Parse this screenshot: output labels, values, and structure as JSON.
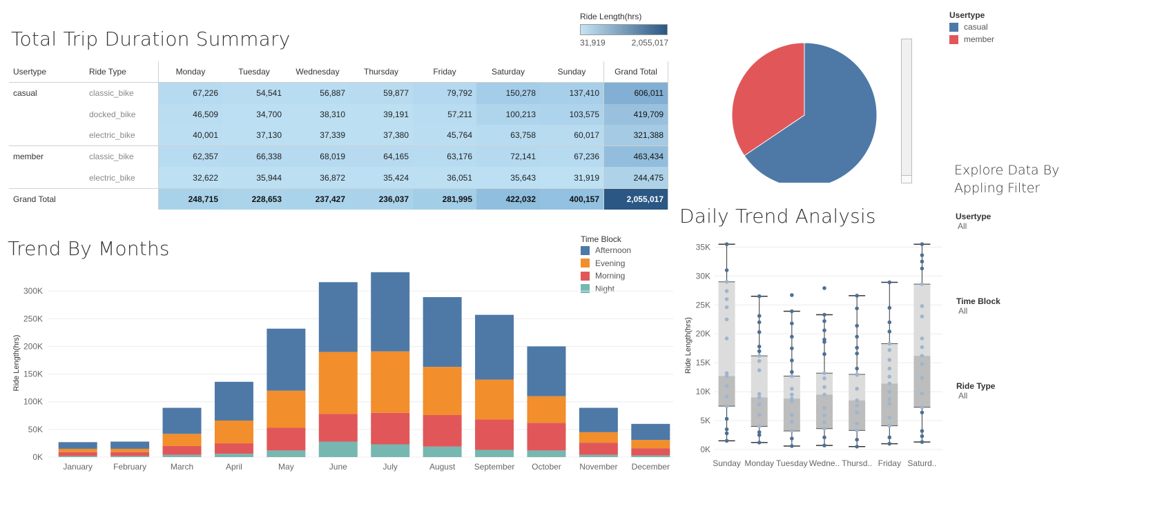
{
  "summary": {
    "title": "Total Trip Duration Summary",
    "color_legend": {
      "title": "Ride Length(hrs)",
      "min_label": "31,919",
      "max_label": "2,055,017",
      "min_color": "#c6e3f3",
      "max_color": "#2a5783"
    },
    "headers": [
      "Usertype",
      "Ride Type",
      "Monday",
      "Tuesday",
      "Wednesday",
      "Thursday",
      "Friday",
      "Saturday",
      "Sunday",
      "Grand Total"
    ],
    "rows": [
      {
        "usertype": "casual",
        "ride_type": "classic_bike",
        "values": [
          "67,226",
          "54,541",
          "56,887",
          "59,877",
          "79,792",
          "150,278",
          "137,410",
          "606,011"
        ]
      },
      {
        "usertype": "",
        "ride_type": "docked_bike",
        "values": [
          "46,509",
          "34,700",
          "38,310",
          "39,191",
          "57,211",
          "100,213",
          "103,575",
          "419,709"
        ]
      },
      {
        "usertype": "",
        "ride_type": "electric_bike",
        "values": [
          "40,001",
          "37,130",
          "37,339",
          "37,380",
          "45,764",
          "63,758",
          "60,017",
          "321,388"
        ]
      },
      {
        "usertype": "member",
        "ride_type": "classic_bike",
        "values": [
          "62,357",
          "66,338",
          "68,019",
          "64,165",
          "63,176",
          "72,141",
          "67,236",
          "463,434"
        ]
      },
      {
        "usertype": "",
        "ride_type": "electric_bike",
        "values": [
          "32,622",
          "35,944",
          "36,872",
          "35,424",
          "36,051",
          "35,643",
          "31,919",
          "244,475"
        ]
      }
    ],
    "grand_total": {
      "label": "Grand Total",
      "values": [
        "248,715",
        "228,653",
        "237,427",
        "236,037",
        "281,995",
        "422,032",
        "400,157",
        "2,055,017"
      ]
    }
  },
  "usertype_legend": {
    "title": "Usertype",
    "items": [
      {
        "label": "casual",
        "color": "#4e79a7"
      },
      {
        "label": "member",
        "color": "#e15759"
      }
    ]
  },
  "explore": {
    "title_line1": "Explore Data By",
    "title_line2": "Appling Filter",
    "filters": [
      {
        "label": "Usertype",
        "value": "All"
      },
      {
        "label": "Time Block",
        "value": "All"
      },
      {
        "label": "Ride Type",
        "value": "All"
      }
    ]
  },
  "chart_data": [
    {
      "type": "pie",
      "title": "",
      "categories": [
        "casual",
        "member"
      ],
      "values": [
        1347108,
        707909
      ],
      "colors": [
        "#4e79a7",
        "#e15759"
      ]
    },
    {
      "type": "bar",
      "stacked": true,
      "title": "Trend By Months",
      "xlabel": "",
      "ylabel": "Ride Length(hrs)",
      "ylim": [
        0,
        340000
      ],
      "yticks": [
        "0K",
        "50K",
        "100K",
        "150K",
        "200K",
        "250K",
        "300K"
      ],
      "legend_title": "Time Block",
      "legend_position": "top-right",
      "categories": [
        "January",
        "February",
        "March",
        "April",
        "May",
        "June",
        "July",
        "August",
        "September",
        "October",
        "November",
        "December"
      ],
      "series": [
        {
          "name": "Night",
          "color": "#76b7b2",
          "values": [
            2000,
            2000,
            4000,
            6000,
            12000,
            28000,
            23000,
            19000,
            13000,
            12000,
            4000,
            3000
          ]
        },
        {
          "name": "Morning",
          "color": "#e15759",
          "values": [
            7000,
            7000,
            16000,
            19000,
            41000,
            50000,
            57000,
            57000,
            55000,
            50000,
            22000,
            13000
          ]
        },
        {
          "name": "Evening",
          "color": "#f28e2b",
          "values": [
            6000,
            6000,
            22000,
            41000,
            67000,
            112000,
            111000,
            87000,
            72000,
            48000,
            19000,
            15000
          ]
        },
        {
          "name": "Afternoon",
          "color": "#4e79a7",
          "values": [
            12000,
            13000,
            47000,
            70000,
            112000,
            126000,
            143000,
            126000,
            117000,
            90000,
            44000,
            29000
          ]
        }
      ],
      "grid": true
    },
    {
      "type": "scatter",
      "subtype": "box-and-whisker",
      "title": "Daily Trend Analysis",
      "xlabel": "",
      "ylabel": "Ride Length(hrs)",
      "ylim": [
        0,
        36000
      ],
      "yticks": [
        "0K",
        "5K",
        "10K",
        "15K",
        "20K",
        "25K",
        "30K",
        "35K"
      ],
      "categories": [
        "Sunday",
        "Monday",
        "Tuesday",
        "Wedne..",
        "Thursd..",
        "Friday",
        "Saturd.."
      ],
      "boxes": [
        {
          "min": 1500,
          "q1": 7500,
          "median": 12700,
          "q3": 29000,
          "max": 35500
        },
        {
          "min": 1200,
          "q1": 4000,
          "median": 9000,
          "q3": 16200,
          "max": 26500
        },
        {
          "min": 600,
          "q1": 3200,
          "median": 8800,
          "q3": 12700,
          "max": 23900
        },
        {
          "min": 700,
          "q1": 3600,
          "median": 9500,
          "q3": 13200,
          "max": 23300
        },
        {
          "min": 500,
          "q1": 3300,
          "median": 8500,
          "q3": 13000,
          "max": 26600
        },
        {
          "min": 1000,
          "q1": 4100,
          "median": 11400,
          "q3": 18300,
          "max": 28900
        },
        {
          "min": 1300,
          "q1": 7300,
          "median": 16200,
          "q3": 28600,
          "max": 35500
        }
      ],
      "points": [
        [
          1500,
          2800,
          3500,
          5300,
          7500,
          9200,
          11000,
          12700,
          13200,
          19200,
          22500,
          24600,
          26000,
          27400,
          29000,
          31000,
          35500
        ],
        [
          1200,
          2500,
          3000,
          4000,
          6000,
          7800,
          9000,
          9600,
          13700,
          15300,
          16200,
          17000,
          17800,
          20300,
          22000,
          23100,
          26500
        ],
        [
          600,
          1900,
          3200,
          4800,
          6000,
          8300,
          8800,
          9500,
          10500,
          12700,
          13400,
          15400,
          17500,
          19500,
          21800,
          23900,
          26700
        ],
        [
          700,
          2100,
          3600,
          4700,
          5900,
          7200,
          9500,
          10800,
          12300,
          13200,
          16500,
          18600,
          19000,
          20600,
          22200,
          23300,
          27900
        ],
        [
          500,
          1700,
          3300,
          4500,
          6400,
          7600,
          8500,
          10500,
          12900,
          13000,
          14000,
          16600,
          17600,
          19500,
          21400,
          24400,
          26600
        ],
        [
          1000,
          2100,
          4100,
          5500,
          7900,
          8700,
          10000,
          11400,
          12600,
          14000,
          15500,
          17200,
          18300,
          20400,
          22000,
          24500,
          28900
        ],
        [
          1300,
          2300,
          3200,
          6400,
          7300,
          9700,
          12400,
          14800,
          16200,
          17700,
          19200,
          23000,
          24800,
          28600,
          31300,
          32500,
          33600,
          35500
        ]
      ]
    }
  ]
}
